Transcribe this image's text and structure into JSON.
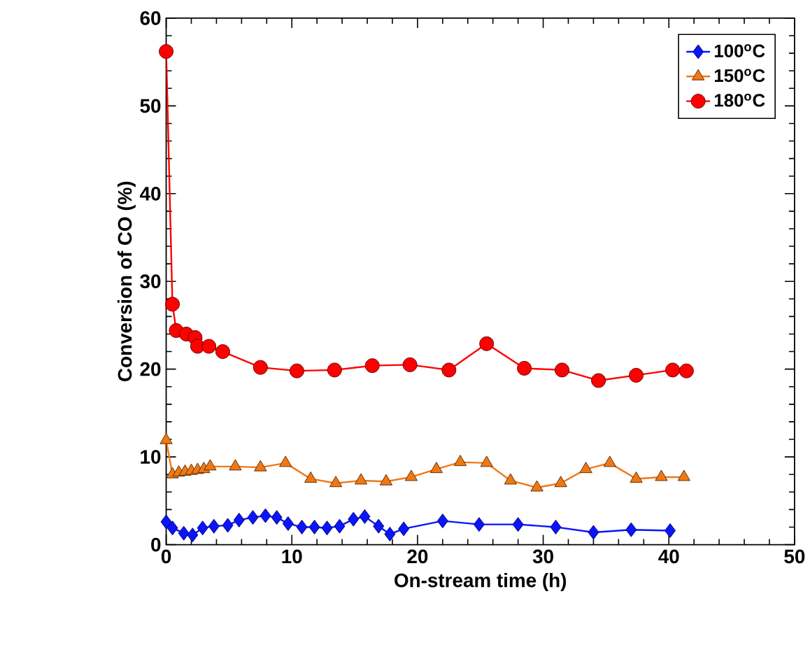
{
  "chart_data": {
    "type": "line",
    "xlabel": "On-stream time (h)",
    "ylabel": "Conversion of CO (%)",
    "xlim": [
      0,
      50
    ],
    "xticks": [
      0,
      10,
      20,
      30,
      40,
      50
    ],
    "ylim": [
      0,
      60
    ],
    "yticks": [
      0,
      10,
      20,
      30,
      40,
      50,
      60
    ],
    "grid": false,
    "legend": "top right",
    "line_style": "solid",
    "series": [
      {
        "name": "100$^{o}$C",
        "color": "#0a14ff",
        "marker": "diamond",
        "x": [
          0,
          0.5,
          1.4,
          2.1,
          2.9,
          3.8,
          4.9,
          5.8,
          6.9,
          7.9,
          8.8,
          9.7,
          10.8,
          11.8,
          12.8,
          13.8,
          14.9,
          15.8,
          16.9,
          17.8,
          18.9,
          22.0,
          24.9,
          28.0,
          31.0,
          34.0,
          37.0,
          40.1
        ],
        "values": [
          2.6,
          1.9,
          1.3,
          1.1,
          1.9,
          2.1,
          2.2,
          2.8,
          3.1,
          3.3,
          3.1,
          2.4,
          2.0,
          2.0,
          1.9,
          2.1,
          2.9,
          3.2,
          2.1,
          1.2,
          1.8,
          2.7,
          2.3,
          2.3,
          2.0,
          1.4,
          1.7,
          1.6
        ]
      },
      {
        "name": "150$^{o}$C",
        "color": "#f07814",
        "marker": "triangle",
        "x": [
          0,
          0.5,
          1.0,
          1.5,
          2.0,
          2.5,
          3.0,
          3.5,
          5.5,
          7.5,
          9.5,
          11.5,
          13.5,
          15.5,
          17.5,
          19.5,
          21.5,
          23.4,
          25.5,
          27.4,
          29.5,
          31.4,
          33.4,
          35.3,
          37.4,
          39.4,
          41.2
        ],
        "values": [
          11.9,
          8.0,
          8.2,
          8.3,
          8.4,
          8.5,
          8.6,
          8.9,
          8.9,
          8.8,
          9.3,
          7.5,
          7.0,
          7.3,
          7.2,
          7.7,
          8.6,
          9.4,
          9.3,
          7.3,
          6.5,
          7.0,
          8.6,
          9.3,
          7.5,
          7.7,
          7.7
        ]
      },
      {
        "name": "180$^{o}$C",
        "color": "#ff0000",
        "marker": "circle",
        "x": [
          0,
          0.5,
          0.8,
          1.6,
          2.3,
          2.5,
          3.4,
          4.5,
          7.5,
          10.4,
          13.4,
          16.4,
          19.4,
          22.5,
          25.5,
          28.5,
          31.5,
          34.4,
          37.4,
          40.3,
          41.4
        ],
        "values": [
          56.2,
          27.4,
          24.4,
          24.0,
          23.6,
          22.6,
          22.6,
          22.0,
          20.2,
          19.8,
          19.9,
          20.4,
          20.5,
          19.9,
          22.9,
          20.1,
          19.9,
          18.7,
          19.3,
          19.9,
          19.8
        ]
      }
    ]
  }
}
